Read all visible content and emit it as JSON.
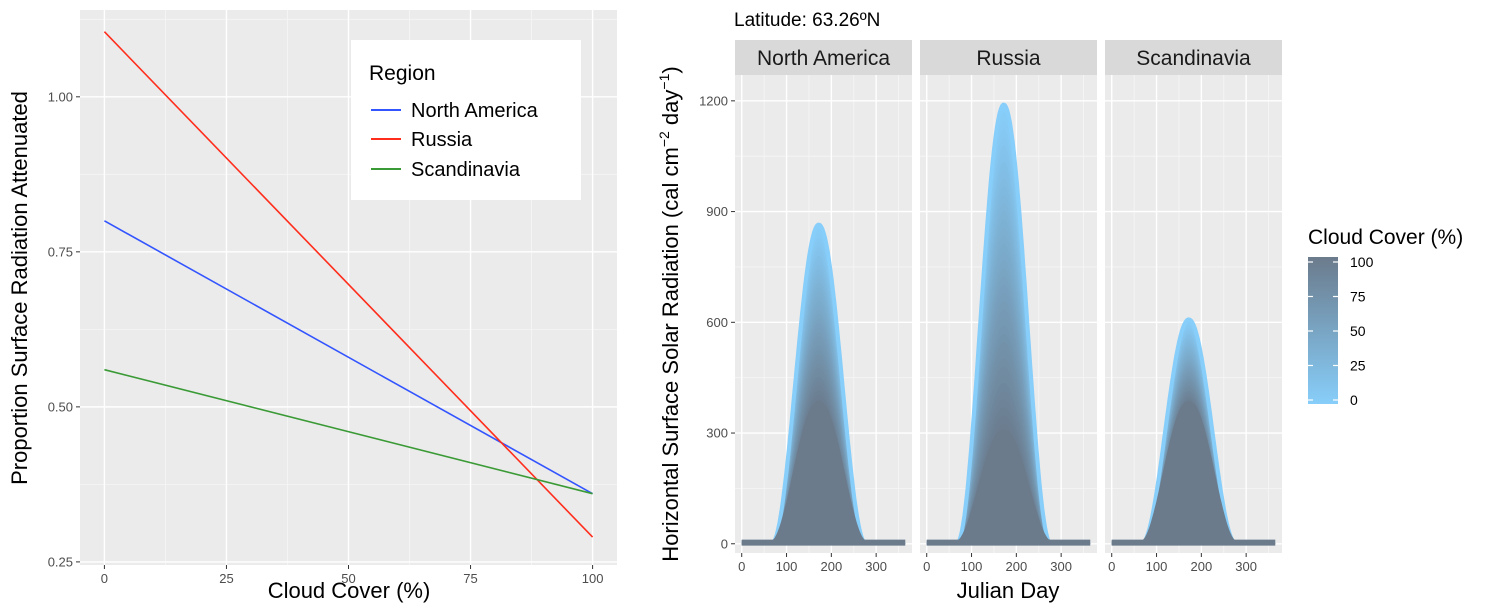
{
  "chart_data": [
    {
      "type": "line",
      "title": "",
      "xlabel": "Cloud Cover (%)",
      "ylabel": "Proportion Surface Radiation Attenuated",
      "xlim": [
        -5,
        105
      ],
      "ylim": [
        0.245,
        1.14
      ],
      "x_ticks": [
        0,
        25,
        50,
        75,
        100
      ],
      "y_ticks": [
        0.25,
        0.5,
        0.75,
        1.0
      ],
      "x_tick_labels": [
        "0",
        "25",
        "50",
        "75",
        "100"
      ],
      "y_tick_labels": [
        "0.25",
        "0.50",
        "0.75",
        "1.00"
      ],
      "grid": true,
      "legend": {
        "title": "Region",
        "placement": "top-right inside"
      },
      "series": [
        {
          "name": "North America",
          "color": "#3355ff",
          "x": [
            0,
            100
          ],
          "y": [
            0.8,
            0.36
          ]
        },
        {
          "name": "Russia",
          "color": "#ff2d1c",
          "x": [
            0,
            100
          ],
          "y": [
            1.105,
            0.29
          ]
        },
        {
          "name": "Scandinavia",
          "color": "#3a9a35",
          "x": [
            0,
            100
          ],
          "y": [
            0.56,
            0.36
          ]
        }
      ]
    },
    {
      "type": "area",
      "title": "Latitude: 63.26ºN",
      "xlabel": "Julian Day",
      "ylabel_parts": [
        "Horizontal Surface Solar Radiation (cal cm",
        "−2",
        " day",
        "−1",
        ")"
      ],
      "xlim": [
        -15,
        380
      ],
      "ylim": [
        -25,
        1270
      ],
      "x_ticks": [
        0,
        100,
        200,
        300
      ],
      "y_ticks": [
        0,
        300,
        600,
        900,
        1200
      ],
      "x_tick_labels": [
        "0",
        "100",
        "200",
        "300"
      ],
      "y_tick_labels": [
        "0",
        "300",
        "600",
        "900",
        "1200"
      ],
      "grid": true,
      "facets": [
        {
          "name": "North America",
          "peak_day": 172,
          "clear_peak": 865,
          "overcast_peak": 380,
          "winter_min": 3
        },
        {
          "name": "Russia",
          "peak_day": 172,
          "clear_peak": 1190,
          "overcast_peak": 303,
          "winter_min": 3
        },
        {
          "name": "Scandinavia",
          "peak_day": 172,
          "clear_peak": 608,
          "overcast_peak": 380,
          "winter_min": 3
        }
      ],
      "colorbar": {
        "title": "Cloud Cover (%)",
        "range": [
          0,
          100
        ],
        "ticks": [
          "100",
          "75",
          "50",
          "25",
          "0"
        ],
        "low_color": "#87cefa",
        "high_color": "#6b7b8c"
      },
      "colors": {
        "panel_bg": "#ebebeb",
        "strip_bg": "#d9d9d9",
        "grid_major": "#ffffff"
      }
    }
  ]
}
